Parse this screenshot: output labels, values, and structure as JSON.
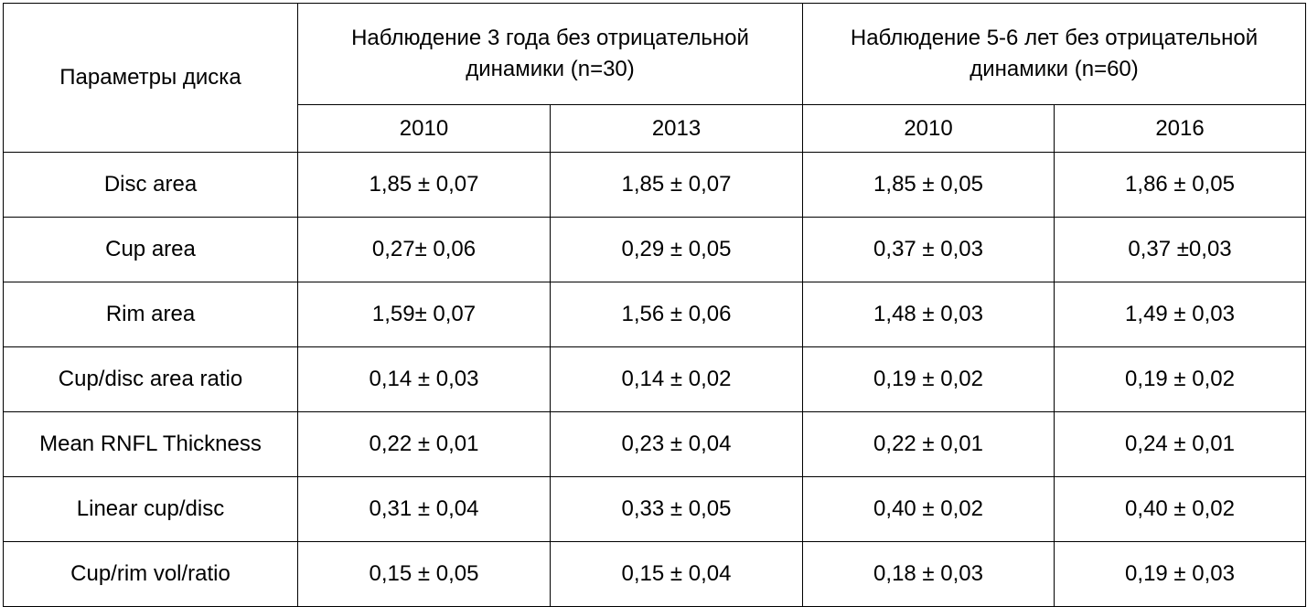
{
  "table": {
    "param_header": "Параметры диска",
    "groups": [
      {
        "line1": "Наблюдение 3 года без отрицательной",
        "line2": "динамики (n=30)"
      },
      {
        "line1": "Наблюдение 5-6 лет без отрицательной",
        "line2": "динамики (n=60)"
      }
    ],
    "years": [
      "2010",
      "2013",
      "2010",
      "2016"
    ],
    "rows": [
      {
        "param": "Disc area",
        "values": [
          "1,85 ± 0,07",
          "1,85 ± 0,07",
          "1,85 ± 0,05",
          "1,86 ± 0,05"
        ]
      },
      {
        "param": "Cup area",
        "values": [
          "0,27± 0,06",
          "0,29 ± 0,05",
          "0,37 ± 0,03",
          "0,37 ±0,03"
        ]
      },
      {
        "param": "Rim area",
        "values": [
          "1,59± 0,07",
          "1,56 ± 0,06",
          "1,48 ± 0,03",
          "1,49 ± 0,03"
        ]
      },
      {
        "param": "Cup/disc area ratio",
        "values": [
          "0,14 ± 0,03",
          "0,14 ± 0,02",
          "0,19 ± 0,02",
          "0,19 ± 0,02"
        ]
      },
      {
        "param": "Mean RNFL Thickness",
        "values": [
          "0,22 ± 0,01",
          "0,23 ± 0,04",
          "0,22 ± 0,01",
          "0,24 ± 0,01"
        ]
      },
      {
        "param": "Linear cup/disc",
        "values": [
          "0,31 ± 0,04",
          "0,33 ± 0,05",
          "0,40 ± 0,02",
          "0,40 ± 0,02"
        ]
      },
      {
        "param": "Cup/rim vol/ratio",
        "values": [
          "0,15 ± 0,05",
          "0,15 ± 0,04",
          "0,18 ± 0,03",
          "0,19 ± 0,03"
        ]
      }
    ]
  }
}
